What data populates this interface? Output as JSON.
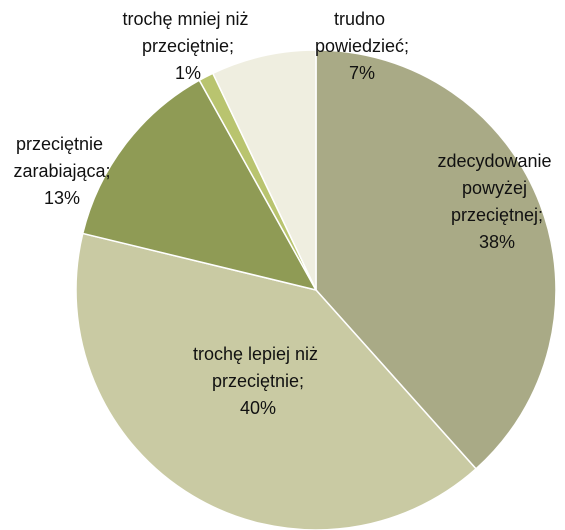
{
  "chart_data": {
    "type": "pie",
    "categories": [
      "zdecydowanie powyżej przeciętnej;",
      "trochę lepiej niż przeciętnie;",
      "przeciętnie zarabiająca;",
      "trochę mniej niż przeciętnie;",
      "trudno powiedzieć;"
    ],
    "values": [
      38,
      40,
      13,
      1,
      7
    ],
    "value_labels": [
      "38%",
      "40%",
      "13%",
      "1%",
      "7%"
    ],
    "colors": [
      "#a9aa86",
      "#c9caa3",
      "#8f9b55",
      "#b9c46f",
      "#efeee0"
    ]
  }
}
